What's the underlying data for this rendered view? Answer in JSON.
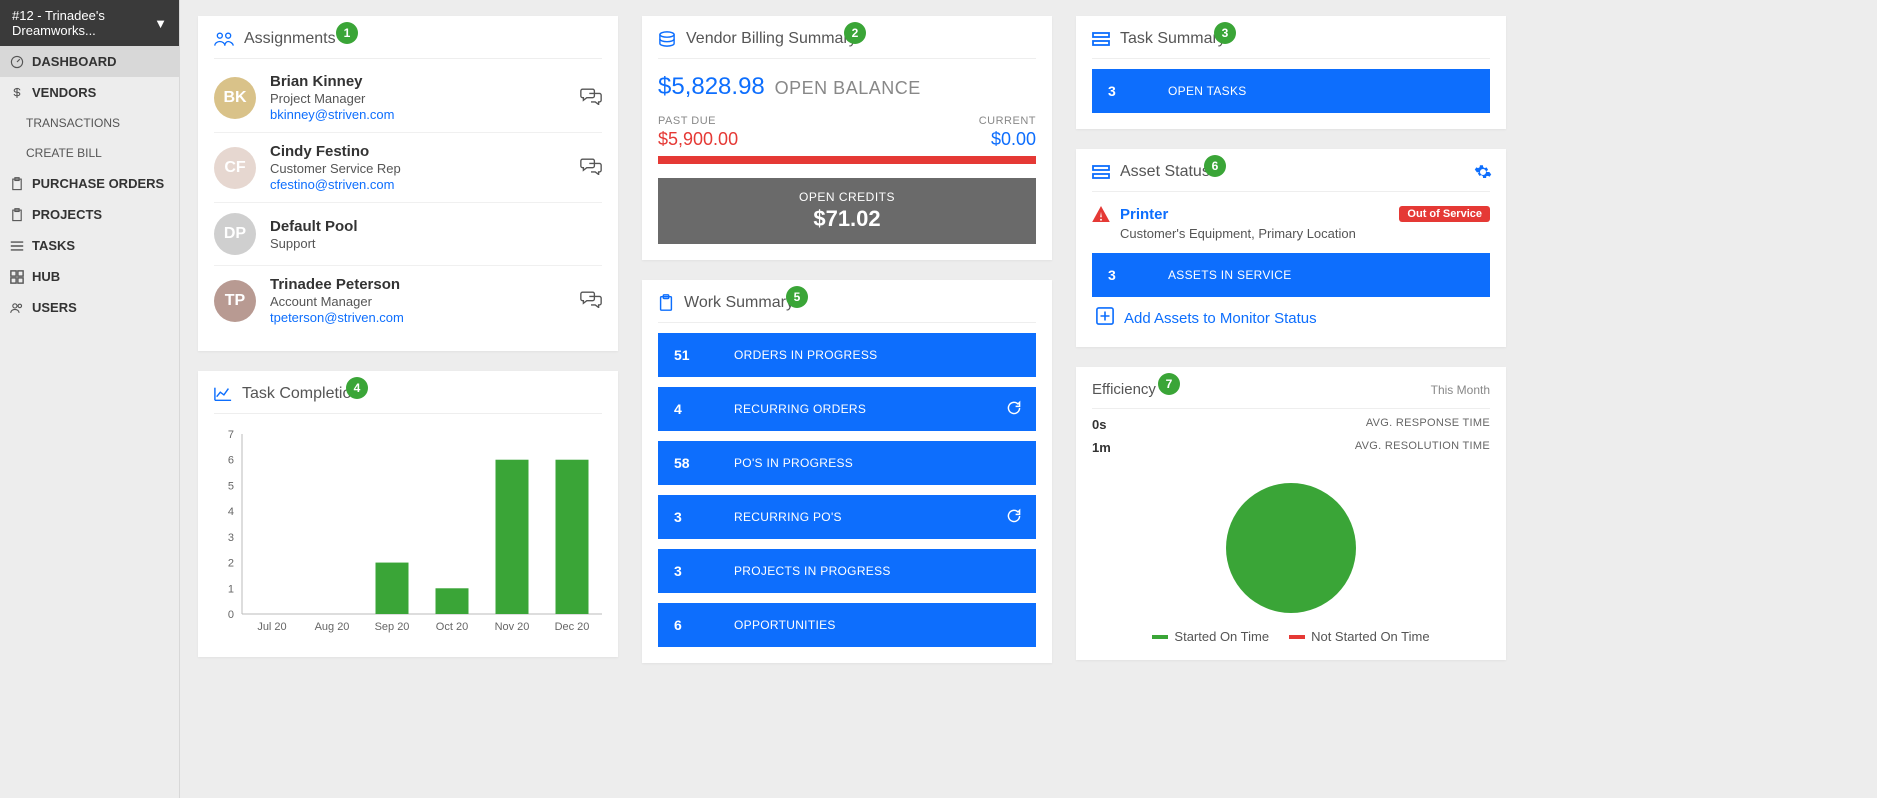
{
  "workspace": {
    "label": "#12 - Trinadee's Dreamworks..."
  },
  "sidebar": {
    "items": [
      {
        "label": "DASHBOARD",
        "icon": "gauge",
        "active": true
      },
      {
        "label": "VENDORS",
        "icon": "dollar"
      },
      {
        "label": "PURCHASE ORDERS",
        "icon": "clipboard"
      },
      {
        "label": "PROJECTS",
        "icon": "clipboard"
      },
      {
        "label": "TASKS",
        "icon": "list"
      },
      {
        "label": "HUB",
        "icon": "grid"
      },
      {
        "label": "USERS",
        "icon": "users"
      }
    ],
    "sub": [
      {
        "label": "TRANSACTIONS"
      },
      {
        "label": "CREATE BILL"
      }
    ]
  },
  "assignments": {
    "title": "Assignments",
    "badge": "1",
    "rows": [
      {
        "name": "Brian Kinney",
        "role": "Project Manager",
        "email": "bkinney@striven.com",
        "initials": "BK",
        "avatar_bg": "#d9c289",
        "chat": true
      },
      {
        "name": "Cindy Festino",
        "role": "Customer Service Rep",
        "email": "cfestino@striven.com",
        "initials": "CF",
        "avatar_bg": "#e6d7d0",
        "chat": true
      },
      {
        "name": "Default Pool",
        "role": "Support",
        "email": "",
        "initials": "DP",
        "avatar_bg": "#cfcfcf",
        "chat": false
      },
      {
        "name": "Trinadee Peterson",
        "role": "Account Manager",
        "email": "tpeterson@striven.com",
        "initials": "TP",
        "avatar_bg": "#b89a92",
        "chat": true
      }
    ]
  },
  "task_completion": {
    "title": "Task Completion",
    "badge": "4",
    "type": "bar",
    "categories": [
      "Jul 20",
      "Aug 20",
      "Sep 20",
      "Oct 20",
      "Nov 20",
      "Dec 20"
    ],
    "values": [
      0,
      0,
      2,
      1,
      6,
      6
    ],
    "bar_color": "#3aa537",
    "ylim": [
      0,
      7
    ],
    "ytick_step": 1,
    "axis_color": "#bbbbbb",
    "label_color": "#666666",
    "label_fontsize": 11,
    "background_color": "#ffffff",
    "bar_width": 0.55
  },
  "vendor_billing": {
    "title": "Vendor Billing Summary",
    "badge": "2",
    "open_balance": "$5,828.98",
    "open_balance_label": "OPEN BALANCE",
    "past_due_label": "PAST DUE",
    "past_due": "$5,900.00",
    "current_label": "CURRENT",
    "current": "$0.00",
    "bar_color": "#e53935",
    "open_credits_label": "OPEN CREDITS",
    "open_credits": "$71.02",
    "credits_bg": "#6a6a6a"
  },
  "work_summary": {
    "title": "Work Summary",
    "badge": "5",
    "rows": [
      {
        "count": "51",
        "label": "ORDERS IN PROGRESS",
        "refresh": false
      },
      {
        "count": "4",
        "label": "RECURRING ORDERS",
        "refresh": true
      },
      {
        "count": "58",
        "label": "PO'S IN PROGRESS",
        "refresh": false
      },
      {
        "count": "3",
        "label": "RECURRING PO'S",
        "refresh": true
      },
      {
        "count": "3",
        "label": "PROJECTS IN PROGRESS",
        "refresh": false
      },
      {
        "count": "6",
        "label": "OPPORTUNITIES",
        "refresh": false
      }
    ],
    "row_bg": "#0d6efd"
  },
  "task_summary": {
    "title": "Task Summary",
    "badge": "3",
    "row": {
      "count": "3",
      "label": "OPEN TASKS"
    }
  },
  "asset_status": {
    "title": "Asset Status",
    "badge": "6",
    "gear": true,
    "item": {
      "name": "Printer",
      "meta": "Customer's Equipment, Primary Location",
      "badge": "Out of Service",
      "badge_bg": "#e53935"
    },
    "row": {
      "count": "3",
      "label": "ASSETS IN SERVICE"
    },
    "add_label": "Add Assets to Monitor Status"
  },
  "efficiency": {
    "title": "Efficiency",
    "badge": "7",
    "period": "This Month",
    "metrics": [
      {
        "val": "0s",
        "label": "AVG. RESPONSE TIME"
      },
      {
        "val": "1m",
        "label": "AVG. RESOLUTION TIME"
      }
    ],
    "pie": {
      "type": "pie",
      "slices": [
        {
          "label": "Started On Time",
          "value": 100,
          "color": "#3aa537"
        },
        {
          "label": "Not Started On Time",
          "value": 0,
          "color": "#e53935"
        }
      ]
    },
    "legend": [
      {
        "label": "Started On Time",
        "color": "#3aa537"
      },
      {
        "label": "Not Started On Time",
        "color": "#e53935"
      }
    ]
  }
}
